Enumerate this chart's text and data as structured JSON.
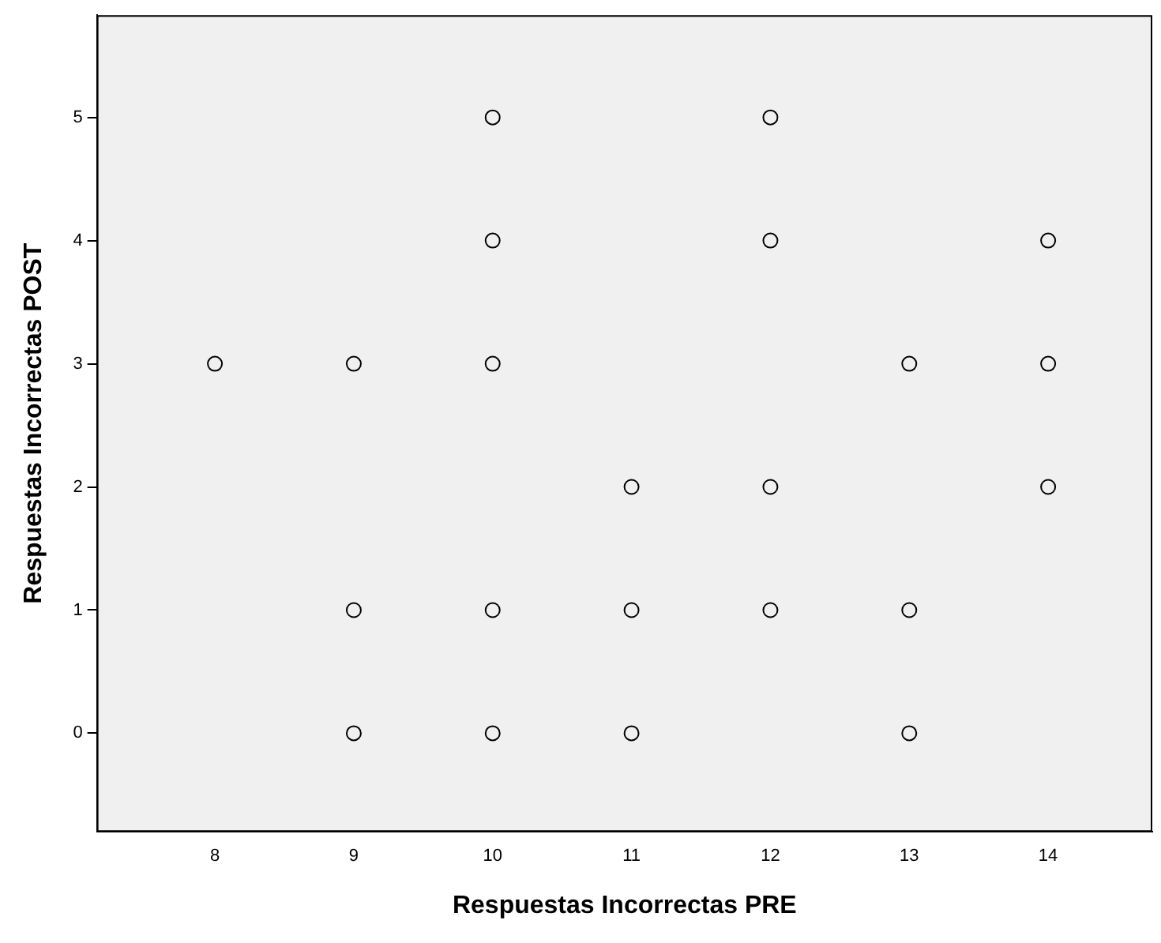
{
  "chart_data": {
    "type": "scatter",
    "xlabel": "Respuestas Incorrectas PRE",
    "ylabel": "Respuestas Incorrectas POST",
    "x": [
      8,
      9,
      9,
      9,
      10,
      10,
      10,
      10,
      10,
      11,
      11,
      11,
      12,
      12,
      12,
      12,
      13,
      13,
      13,
      14,
      14,
      14
    ],
    "series": [
      {
        "color": "#000000",
        "values": [
          3,
          3,
          1,
          0,
          5,
          4,
          3,
          1,
          0,
          2,
          1,
          0,
          5,
          4,
          2,
          1,
          3,
          1,
          0,
          4,
          3,
          2
        ]
      }
    ],
    "xlim": [
      7.15,
      14.75
    ],
    "xticks": [
      8,
      9,
      10,
      11,
      12,
      13,
      14
    ],
    "ylim": [
      -0.8,
      5.83
    ],
    "yticks": [
      0,
      1,
      2,
      3,
      4,
      5
    ],
    "grid": false,
    "legend": false,
    "marker": "circle"
  }
}
